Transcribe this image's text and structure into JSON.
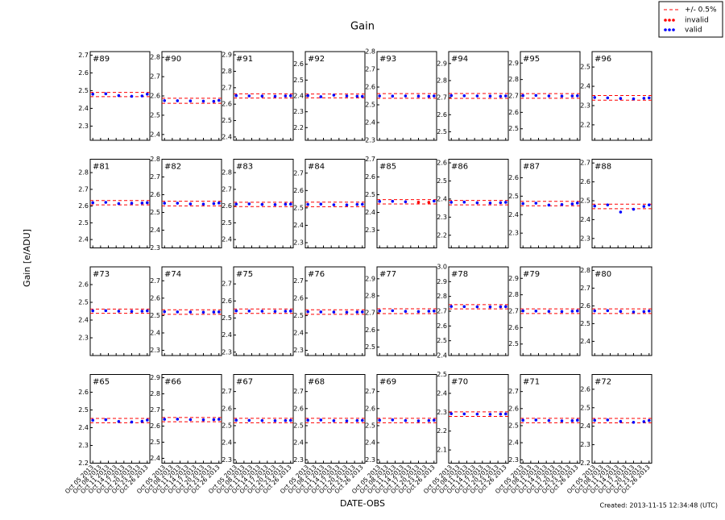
{
  "chart_data": {
    "type": "scatter",
    "title": "Gain",
    "ylabel": "Gain [e/ADU]",
    "xlabel": "DATE-OBS",
    "footer": "Created: 2013-11-15 12:34:48 (UTC)",
    "band_name": "+/- 0.5%",
    "band_color": "#ff0000",
    "styles": [
      {
        "name": "invalid",
        "color": "#ff0000"
      },
      {
        "name": "valid",
        "color": "#0000ff"
      }
    ],
    "x": [
      "2013-10-05",
      "2013-10-10",
      "2013-10-15",
      "2013-10-20",
      "2013-10-24",
      "2013-10-26"
    ],
    "xlim": [
      "2013-10-04",
      "2013-10-27"
    ],
    "xticks": [
      {
        "value": "2013-10-05",
        "label": "Oct 05 2013"
      },
      {
        "value": "2013-10-08",
        "label": "Oct 08 2013"
      },
      {
        "value": "2013-10-11",
        "label": "Oct 11 2013"
      },
      {
        "value": "2013-10-14",
        "label": "Oct 14 2013"
      },
      {
        "value": "2013-10-17",
        "label": "Oct 17 2013"
      },
      {
        "value": "2013-10-20",
        "label": "Oct 20 2013"
      },
      {
        "value": "2013-10-23",
        "label": "Oct 23 2013"
      },
      {
        "value": "2013-10-26",
        "label": "Oct 26 2013"
      }
    ],
    "panels": [
      {
        "label": "#89",
        "ylim": [
          2.22,
          2.72
        ],
        "yticks": [
          2.3,
          2.4,
          2.5,
          2.6,
          2.7
        ],
        "band": [
          2.466,
          2.49
        ],
        "valid": [
          2.48,
          2.482,
          2.472,
          2.468,
          2.47,
          2.48
        ]
      },
      {
        "label": "#90",
        "ylim": [
          2.37,
          2.83
        ],
        "yticks": [
          2.4,
          2.5,
          2.6,
          2.7,
          2.8
        ],
        "band": [
          2.562,
          2.588
        ],
        "valid": [
          2.576,
          2.575,
          2.574,
          2.573,
          2.572,
          2.577
        ]
      },
      {
        "label": "#91",
        "ylim": [
          2.38,
          2.92
        ],
        "yticks": [
          2.4,
          2.5,
          2.6,
          2.7,
          2.8,
          2.9
        ],
        "band": [
          2.637,
          2.663
        ],
        "valid": [
          2.652,
          2.65,
          2.649,
          2.648,
          2.65,
          2.651
        ]
      },
      {
        "label": "#92",
        "ylim": [
          2.12,
          2.68
        ],
        "yticks": [
          2.2,
          2.3,
          2.4,
          2.5,
          2.6
        ],
        "band": [
          2.388,
          2.412
        ],
        "valid": [
          2.402,
          2.395,
          2.405,
          2.4,
          2.398,
          2.397
        ]
      },
      {
        "label": "#93",
        "ylim": [
          2.3,
          2.8
        ],
        "yticks": [
          2.3,
          2.4,
          2.5,
          2.6,
          2.7,
          2.8
        ],
        "band": [
          2.537,
          2.563
        ],
        "valid": [
          2.55,
          2.549,
          2.55,
          2.549,
          2.548,
          2.55
        ]
      },
      {
        "label": "#94",
        "ylim": [
          2.45,
          2.97
        ],
        "yticks": [
          2.5,
          2.6,
          2.7,
          2.8,
          2.9
        ],
        "band": [
          2.696,
          2.724
        ],
        "valid": [
          2.712,
          2.711,
          2.71,
          2.709,
          2.708,
          2.71
        ]
      },
      {
        "label": "#95",
        "ylim": [
          2.43,
          2.97
        ],
        "yticks": [
          2.5,
          2.6,
          2.7,
          2.8,
          2.9
        ],
        "band": [
          2.686,
          2.714
        ],
        "valid": [
          2.702,
          2.703,
          2.7,
          2.699,
          2.7,
          2.701
        ]
      },
      {
        "label": "#96",
        "ylim": [
          2.12,
          2.58
        ],
        "yticks": [
          2.2,
          2.3,
          2.4,
          2.5
        ],
        "band": [
          2.328,
          2.352
        ],
        "valid": [
          2.342,
          2.34,
          2.337,
          2.335,
          2.338,
          2.34
        ]
      },
      {
        "label": "#81",
        "ylim": [
          2.35,
          2.88
        ],
        "yticks": [
          2.4,
          2.5,
          2.6,
          2.7,
          2.8
        ],
        "band": [
          2.607,
          2.633
        ],
        "valid": [
          2.62,
          2.622,
          2.615,
          2.617,
          2.618,
          2.62
        ]
      },
      {
        "label": "#82",
        "ylim": [
          2.3,
          2.8
        ],
        "yticks": [
          2.3,
          2.4,
          2.5,
          2.6,
          2.7,
          2.8
        ],
        "band": [
          2.537,
          2.563
        ],
        "valid": [
          2.552,
          2.552,
          2.548,
          2.547,
          2.55,
          2.553
        ]
      },
      {
        "label": "#83",
        "ylim": [
          2.35,
          2.88
        ],
        "yticks": [
          2.4,
          2.5,
          2.6,
          2.7,
          2.8
        ],
        "band": [
          2.597,
          2.623
        ],
        "valid": [
          2.612,
          2.613,
          2.61,
          2.609,
          2.611,
          2.612
        ]
      },
      {
        "label": "#84",
        "ylim": [
          2.27,
          2.78
        ],
        "yticks": [
          2.3,
          2.4,
          2.5,
          2.6,
          2.7
        ],
        "band": [
          2.507,
          2.533
        ],
        "valid": [
          2.52,
          2.522,
          2.518,
          2.517,
          2.52,
          2.521
        ]
      },
      {
        "label": "#85",
        "ylim": [
          2.2,
          2.7
        ],
        "yticks": [
          2.3,
          2.4,
          2.5,
          2.6,
          2.7
        ],
        "band": [
          2.448,
          2.472
        ],
        "valid": [
          2.462,
          2.463,
          2.46,
          null,
          null,
          2.464
        ],
        "invalid": [
          null,
          null,
          null,
          2.458,
          2.457,
          null
        ]
      },
      {
        "label": "#86",
        "ylim": [
          2.13,
          2.62
        ],
        "yticks": [
          2.2,
          2.3,
          2.4,
          2.5,
          2.6
        ],
        "band": [
          2.368,
          2.392
        ],
        "valid": [
          2.382,
          2.383,
          2.379,
          2.378,
          2.38,
          2.382
        ]
      },
      {
        "label": "#87",
        "ylim": [
          2.22,
          2.7
        ],
        "yticks": [
          2.3,
          2.4,
          2.5,
          2.6
        ],
        "band": [
          2.448,
          2.472
        ],
        "valid": [
          2.46,
          2.462,
          2.452,
          2.455,
          2.458,
          2.463
        ]
      },
      {
        "label": "#88",
        "ylim": [
          2.25,
          2.72
        ],
        "yticks": [
          2.3,
          2.4,
          2.5,
          2.6,
          2.7
        ],
        "band": [
          2.458,
          2.482
        ],
        "valid": [
          2.472,
          2.478,
          2.44,
          2.455,
          2.47,
          2.478
        ]
      },
      {
        "label": "#73",
        "ylim": [
          2.2,
          2.7
        ],
        "yticks": [
          2.3,
          2.4,
          2.5,
          2.6
        ],
        "band": [
          2.438,
          2.462
        ],
        "valid": [
          2.452,
          2.453,
          2.45,
          2.449,
          2.45,
          2.452
        ]
      },
      {
        "label": "#74",
        "ylim": [
          2.27,
          2.78
        ],
        "yticks": [
          2.3,
          2.4,
          2.5,
          2.6,
          2.7
        ],
        "band": [
          2.507,
          2.533
        ],
        "valid": [
          2.522,
          2.521,
          2.52,
          2.519,
          2.52,
          2.521
        ]
      },
      {
        "label": "#75",
        "ylim": [
          2.28,
          2.8
        ],
        "yticks": [
          2.3,
          2.4,
          2.5,
          2.6,
          2.7
        ],
        "band": [
          2.527,
          2.553
        ],
        "valid": [
          2.542,
          2.541,
          2.54,
          2.539,
          2.54,
          2.541
        ]
      },
      {
        "label": "#76",
        "ylim": [
          2.27,
          2.78
        ],
        "yticks": [
          2.3,
          2.4,
          2.5,
          2.6,
          2.7
        ],
        "band": [
          2.507,
          2.533
        ],
        "valid": [
          2.522,
          2.521,
          2.52,
          2.519,
          2.52,
          2.521
        ]
      },
      {
        "label": "#77",
        "ylim": [
          2.45,
          2.97
        ],
        "yticks": [
          2.5,
          2.6,
          2.7,
          2.8,
          2.9
        ],
        "band": [
          2.696,
          2.724
        ],
        "valid": [
          2.712,
          2.713,
          2.709,
          2.708,
          2.71,
          2.711
        ]
      },
      {
        "label": "#78",
        "ylim": [
          2.4,
          3.0
        ],
        "yticks": [
          2.4,
          2.5,
          2.6,
          2.7,
          2.8,
          2.9,
          {
            "value": 3,
            "label": "3.0"
          }
        ],
        "band": [
          2.716,
          2.744
        ],
        "valid": [
          2.732,
          2.731,
          2.73,
          2.729,
          2.73,
          2.731
        ]
      },
      {
        "label": "#79",
        "ylim": [
          2.43,
          2.97
        ],
        "yticks": [
          2.5,
          2.6,
          2.7,
          2.8,
          2.9
        ],
        "band": [
          2.686,
          2.714
        ],
        "valid": [
          2.702,
          2.701,
          2.699,
          2.698,
          2.7,
          2.702
        ]
      },
      {
        "label": "#80",
        "ylim": [
          2.32,
          2.82
        ],
        "yticks": [
          2.4,
          2.5,
          2.6,
          2.7,
          2.8
        ],
        "band": [
          2.557,
          2.583
        ],
        "valid": [
          2.572,
          2.573,
          2.569,
          2.566,
          2.568,
          2.571
        ]
      },
      {
        "label": "#65",
        "ylim": [
          2.2,
          2.7
        ],
        "yticks": [
          2.2,
          2.3,
          2.4,
          2.5,
          2.6
        ],
        "band": [
          2.428,
          2.452
        ],
        "valid": [
          2.442,
          2.445,
          2.435,
          2.432,
          2.436,
          2.443
        ]
      },
      {
        "label": "#66",
        "ylim": [
          2.37,
          2.92
        ],
        "yticks": [
          2.4,
          2.5,
          2.6,
          2.7,
          2.8,
          2.9
        ],
        "band": [
          2.627,
          2.653
        ],
        "valid": [
          2.642,
          2.643,
          2.64,
          2.639,
          2.64,
          2.642
        ]
      },
      {
        "label": "#67",
        "ylim": [
          2.28,
          2.8
        ],
        "yticks": [
          2.3,
          2.4,
          2.5,
          2.6,
          2.7
        ],
        "band": [
          2.517,
          2.543
        ],
        "valid": [
          2.532,
          2.531,
          2.53,
          2.529,
          2.53,
          2.531
        ]
      },
      {
        "label": "#68",
        "ylim": [
          2.28,
          2.8
        ],
        "yticks": [
          2.3,
          2.4,
          2.5,
          2.6,
          2.7
        ],
        "band": [
          2.517,
          2.543
        ],
        "valid": [
          2.532,
          2.533,
          2.529,
          2.528,
          2.53,
          2.531
        ]
      },
      {
        "label": "#69",
        "ylim": [
          2.28,
          2.8
        ],
        "yticks": [
          2.3,
          2.4,
          2.5,
          2.6,
          2.7
        ],
        "band": [
          2.517,
          2.543
        ],
        "valid": [
          2.532,
          2.534,
          2.53,
          2.528,
          2.53,
          2.532
        ]
      },
      {
        "label": "#70",
        "ylim": [
          2.03,
          2.5
        ],
        "yticks": [
          2.1,
          2.2,
          2.3,
          2.4,
          2.5
        ],
        "band": [
          2.278,
          2.302
        ],
        "valid": [
          2.292,
          2.291,
          2.29,
          2.289,
          2.29,
          2.291
        ]
      },
      {
        "label": "#71",
        "ylim": [
          2.28,
          2.8
        ],
        "yticks": [
          2.3,
          2.4,
          2.5,
          2.6,
          2.7
        ],
        "band": [
          2.517,
          2.543
        ],
        "valid": [
          2.532,
          2.533,
          2.53,
          2.528,
          2.529,
          2.532
        ]
      },
      {
        "label": "#72",
        "ylim": [
          2.2,
          2.68
        ],
        "yticks": [
          2.2,
          2.3,
          2.4,
          2.5,
          2.6
        ],
        "band": [
          2.418,
          2.442
        ],
        "valid": [
          2.432,
          2.434,
          2.426,
          2.421,
          2.425,
          2.431
        ]
      }
    ]
  }
}
